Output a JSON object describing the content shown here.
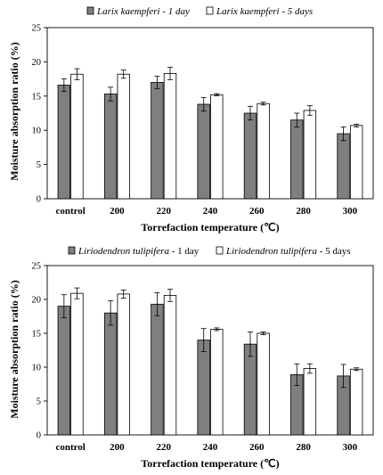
{
  "chart_data": [
    {
      "type": "bar",
      "categories": [
        "control",
        "200",
        "220",
        "240",
        "260",
        "280",
        "300"
      ],
      "series": [
        {
          "name": "Larix kaempferi - 1 day",
          "name_species": "Larix kaempferi",
          "name_suffix": " - 1 day",
          "color": "#7f7f7f",
          "values": [
            16.6,
            15.3,
            17.0,
            13.8,
            12.5,
            11.5,
            9.5
          ],
          "errors": [
            0.9,
            1.0,
            0.9,
            1.0,
            1.0,
            1.0,
            1.0
          ]
        },
        {
          "name": "Larix kaempferi - 5 days",
          "name_species": "Larix kaempferi",
          "name_suffix": " - 5 days",
          "color": "#ffffff",
          "values": [
            18.2,
            18.2,
            18.3,
            15.2,
            13.9,
            12.9,
            10.7
          ],
          "errors": [
            0.8,
            0.6,
            0.9,
            0.15,
            0.2,
            0.7,
            0.2
          ]
        }
      ],
      "xlabel": "Torrefaction temperature (℃)",
      "ylabel": "Moisture absorption ratio (%)",
      "ylim": [
        0,
        25
      ],
      "yticks": [
        "0",
        "5",
        "10",
        "15",
        "20",
        "25"
      ],
      "legend_position": "top",
      "grid": false,
      "legend_italic_full": true
    },
    {
      "type": "bar",
      "categories": [
        "control",
        "200",
        "220",
        "240",
        "260",
        "280",
        "300"
      ],
      "series": [
        {
          "name": "Liriodendron tulipifera - 1 day",
          "name_species": "Liriodendron tulipifera",
          "name_suffix": " - 1 day",
          "color": "#7f7f7f",
          "values": [
            19.0,
            18.0,
            19.3,
            14.0,
            13.4,
            8.9,
            8.7
          ],
          "errors": [
            1.7,
            1.8,
            1.7,
            1.7,
            1.8,
            1.6,
            1.7
          ]
        },
        {
          "name": "Liriodendron tulipifera - 5 days",
          "name_species": "Liriodendron tulipifera",
          "name_suffix": " - 5 days",
          "color": "#ffffff",
          "values": [
            20.9,
            20.8,
            20.6,
            15.6,
            15.0,
            9.8,
            9.7
          ],
          "errors": [
            0.8,
            0.6,
            0.9,
            0.2,
            0.2,
            0.7,
            0.2
          ]
        }
      ],
      "xlabel": "Torrefaction temperature (℃)",
      "ylabel": "Moisture absorption ratio (%)",
      "ylim": [
        0,
        25
      ],
      "yticks": [
        "0",
        "5",
        "10",
        "15",
        "20",
        "25"
      ],
      "legend_position": "top",
      "grid": false,
      "legend_italic_full": false
    }
  ]
}
